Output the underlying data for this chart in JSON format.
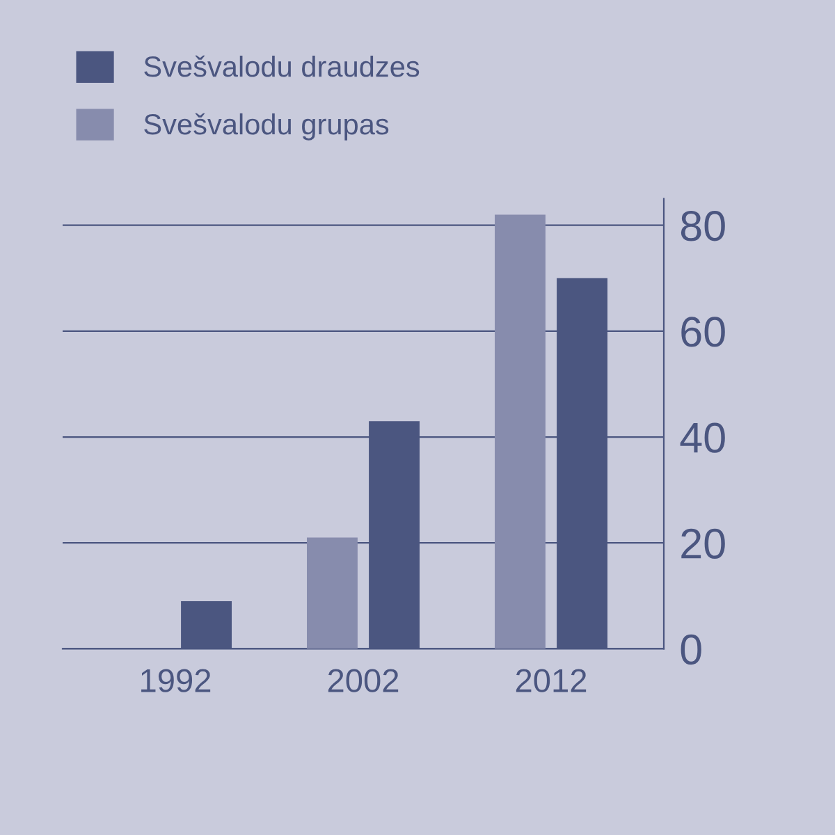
{
  "chart_data": {
    "type": "bar",
    "categories": [
      "1992",
      "2002",
      "2012"
    ],
    "series": [
      {
        "name": "Svešvalodu grupas",
        "color": "#878cad",
        "values": [
          null,
          21,
          82
        ]
      },
      {
        "name": "Svešvalodu draudzes",
        "color": "#4b5680",
        "values": [
          9,
          43,
          70
        ]
      }
    ],
    "ylim": [
      0,
      85
    ],
    "yticks": [
      0,
      20,
      40,
      60,
      80
    ],
    "grid": "y",
    "legend": "top left"
  }
}
